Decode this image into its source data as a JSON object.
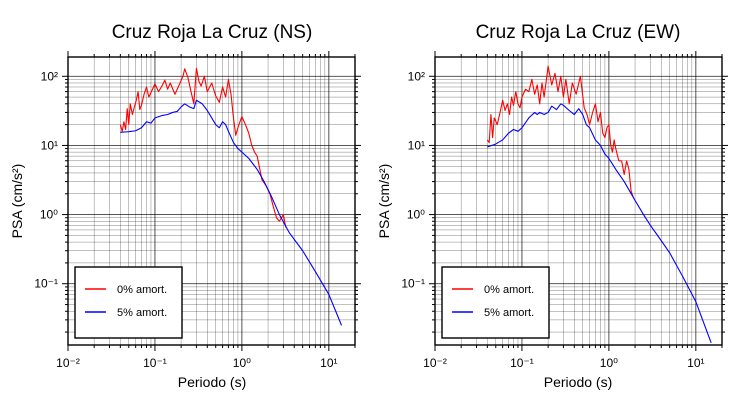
{
  "chart_data": [
    {
      "type": "line",
      "title": "Cruz Roja La Cruz (NS)",
      "xlabel": "Periodo (s)",
      "ylabel": "PSA (cm/s²)",
      "x_scale": "log",
      "y_scale": "log",
      "xlim": [
        0.01,
        20
      ],
      "ylim": [
        0.013,
        190
      ],
      "x_tick_labels": [
        "10⁻²",
        "10⁻¹",
        "10⁰",
        "10¹"
      ],
      "y_tick_labels": [
        "10⁻¹",
        "10⁰",
        "10¹",
        "10²"
      ],
      "grid": true,
      "legend_position": "bottom-left",
      "series": [
        {
          "name": "0% amort.",
          "color": "#ff0000",
          "points": [
            [
              0.04,
              20
            ],
            [
              0.042,
              16
            ],
            [
              0.044,
              22
            ],
            [
              0.046,
              17
            ],
            [
              0.048,
              34
            ],
            [
              0.05,
              20
            ],
            [
              0.052,
              40
            ],
            [
              0.055,
              28
            ],
            [
              0.058,
              36
            ],
            [
              0.061,
              45
            ],
            [
              0.064,
              60
            ],
            [
              0.067,
              33
            ],
            [
              0.07,
              38
            ],
            [
              0.075,
              55
            ],
            [
              0.08,
              70
            ],
            [
              0.085,
              50
            ],
            [
              0.09,
              58
            ],
            [
              0.1,
              78
            ],
            [
              0.11,
              60
            ],
            [
              0.12,
              72
            ],
            [
              0.13,
              88
            ],
            [
              0.14,
              65
            ],
            [
              0.15,
              80
            ],
            [
              0.17,
              55
            ],
            [
              0.19,
              75
            ],
            [
              0.21,
              100
            ],
            [
              0.22,
              128
            ],
            [
              0.24,
              95
            ],
            [
              0.26,
              60
            ],
            [
              0.28,
              40
            ],
            [
              0.3,
              130
            ],
            [
              0.32,
              85
            ],
            [
              0.34,
              72
            ],
            [
              0.37,
              100
            ],
            [
              0.4,
              60
            ],
            [
              0.45,
              80
            ],
            [
              0.5,
              52
            ],
            [
              0.55,
              42
            ],
            [
              0.6,
              70
            ],
            [
              0.65,
              50
            ],
            [
              0.7,
              90
            ],
            [
              0.75,
              55
            ],
            [
              0.8,
              25
            ],
            [
              0.85,
              14
            ],
            [
              0.9,
              18
            ],
            [
              0.95,
              22
            ],
            [
              1.0,
              26
            ],
            [
              1.1,
              20
            ],
            [
              1.2,
              15
            ],
            [
              1.3,
              10
            ],
            [
              1.4,
              8
            ],
            [
              1.5,
              7
            ],
            [
              1.7,
              3.2
            ],
            [
              1.9,
              2.6
            ],
            [
              2.1,
              2.0
            ],
            [
              2.3,
              1.3
            ],
            [
              2.5,
              0.9
            ],
            [
              2.7,
              0.8
            ],
            [
              3.0,
              1.0
            ],
            [
              3.2,
              0.65
            ]
          ]
        },
        {
          "name": "5% amort.",
          "color": "#0000ff",
          "points": [
            [
              0.04,
              15.5
            ],
            [
              0.05,
              15.8
            ],
            [
              0.06,
              16.3
            ],
            [
              0.07,
              18
            ],
            [
              0.08,
              22
            ],
            [
              0.09,
              21
            ],
            [
              0.1,
              25
            ],
            [
              0.12,
              27
            ],
            [
              0.14,
              28
            ],
            [
              0.16,
              30
            ],
            [
              0.18,
              31
            ],
            [
              0.2,
              36
            ],
            [
              0.22,
              40
            ],
            [
              0.25,
              36
            ],
            [
              0.28,
              34
            ],
            [
              0.3,
              45
            ],
            [
              0.35,
              40
            ],
            [
              0.4,
              32
            ],
            [
              0.45,
              25
            ],
            [
              0.5,
              20
            ],
            [
              0.55,
              18
            ],
            [
              0.6,
              22
            ],
            [
              0.65,
              20
            ],
            [
              0.7,
              16
            ],
            [
              0.8,
              11
            ],
            [
              0.9,
              9
            ],
            [
              1.0,
              8
            ],
            [
              1.2,
              6.5
            ],
            [
              1.5,
              4.5
            ],
            [
              1.8,
              3.0
            ],
            [
              2.2,
              1.8
            ],
            [
              2.7,
              1.0
            ],
            [
              3.5,
              0.55
            ],
            [
              5.0,
              0.3
            ],
            [
              7.0,
              0.15
            ],
            [
              10.0,
              0.07
            ],
            [
              14.0,
              0.025
            ]
          ]
        }
      ]
    },
    {
      "type": "line",
      "title": "Cruz Roja La Cruz (EW)",
      "xlabel": "Periodo (s)",
      "ylabel": "PSA (cm/s²)",
      "x_scale": "log",
      "y_scale": "log",
      "xlim": [
        0.01,
        20
      ],
      "ylim": [
        0.013,
        190
      ],
      "x_tick_labels": [
        "10⁻²",
        "10⁻¹",
        "10⁰",
        "10¹"
      ],
      "y_tick_labels": [
        "10⁻¹",
        "10⁰",
        "10¹",
        "10²"
      ],
      "grid": true,
      "legend_position": "bottom-left",
      "series": [
        {
          "name": "0% amort.",
          "color": "#ff0000",
          "points": [
            [
              0.04,
              12
            ],
            [
              0.042,
              11
            ],
            [
              0.044,
              28
            ],
            [
              0.046,
              13
            ],
            [
              0.048,
              25
            ],
            [
              0.052,
              20
            ],
            [
              0.056,
              30
            ],
            [
              0.06,
              45
            ],
            [
              0.064,
              32
            ],
            [
              0.068,
              40
            ],
            [
              0.072,
              28
            ],
            [
              0.076,
              50
            ],
            [
              0.08,
              38
            ],
            [
              0.085,
              60
            ],
            [
              0.09,
              40
            ],
            [
              0.095,
              35
            ],
            [
              0.1,
              50
            ],
            [
              0.11,
              65
            ],
            [
              0.12,
              60
            ],
            [
              0.13,
              90
            ],
            [
              0.14,
              55
            ],
            [
              0.15,
              75
            ],
            [
              0.16,
              40
            ],
            [
              0.17,
              80
            ],
            [
              0.18,
              50
            ],
            [
              0.2,
              140
            ],
            [
              0.22,
              75
            ],
            [
              0.24,
              110
            ],
            [
              0.26,
              60
            ],
            [
              0.28,
              100
            ],
            [
              0.3,
              50
            ],
            [
              0.32,
              90
            ],
            [
              0.35,
              40
            ],
            [
              0.38,
              80
            ],
            [
              0.42,
              55
            ],
            [
              0.47,
              100
            ],
            [
              0.52,
              35
            ],
            [
              0.56,
              28
            ],
            [
              0.6,
              20
            ],
            [
              0.65,
              30
            ],
            [
              0.7,
              40
            ],
            [
              0.75,
              22
            ],
            [
              0.8,
              30
            ],
            [
              0.85,
              15
            ],
            [
              0.9,
              13
            ],
            [
              0.95,
              18
            ],
            [
              1.0,
              20
            ],
            [
              1.05,
              10
            ],
            [
              1.1,
              8
            ],
            [
              1.15,
              12
            ],
            [
              1.2,
              9
            ],
            [
              1.3,
              6
            ],
            [
              1.4,
              6
            ],
            [
              1.5,
              3.8
            ],
            [
              1.6,
              6
            ],
            [
              1.7,
              4.5
            ],
            [
              1.8,
              2.2
            ],
            [
              1.9,
              1.8
            ]
          ]
        },
        {
          "name": "5% amort.",
          "color": "#0000ff",
          "points": [
            [
              0.04,
              9.5
            ],
            [
              0.05,
              10.5
            ],
            [
              0.06,
              12
            ],
            [
              0.07,
              15
            ],
            [
              0.08,
              17
            ],
            [
              0.09,
              16
            ],
            [
              0.1,
              18
            ],
            [
              0.12,
              25
            ],
            [
              0.14,
              30
            ],
            [
              0.15,
              28
            ],
            [
              0.16,
              30
            ],
            [
              0.18,
              28
            ],
            [
              0.2,
              30
            ],
            [
              0.22,
              37
            ],
            [
              0.25,
              33
            ],
            [
              0.28,
              40
            ],
            [
              0.3,
              38
            ],
            [
              0.35,
              32
            ],
            [
              0.4,
              28
            ],
            [
              0.45,
              34
            ],
            [
              0.5,
              28
            ],
            [
              0.55,
              20
            ],
            [
              0.6,
              18
            ],
            [
              0.7,
              12
            ],
            [
              0.8,
              10
            ],
            [
              0.9,
              7.5
            ],
            [
              1.0,
              6.5
            ],
            [
              1.2,
              4.5
            ],
            [
              1.5,
              3.0
            ],
            [
              2.0,
              1.6
            ],
            [
              2.5,
              1.0
            ],
            [
              3.0,
              0.7
            ],
            [
              4.0,
              0.42
            ],
            [
              5.0,
              0.28
            ],
            [
              7.0,
              0.13
            ],
            [
              10.0,
              0.055
            ],
            [
              15.0,
              0.014
            ]
          ]
        }
      ]
    }
  ]
}
